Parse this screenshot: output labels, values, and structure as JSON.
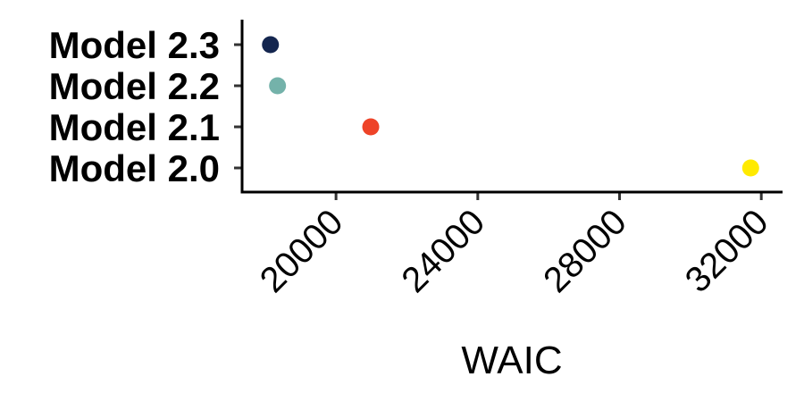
{
  "chart_data": {
    "type": "scatter",
    "title": "",
    "xlabel": "WAIC",
    "ylabel": "",
    "xlim": [
      17350,
      32600
    ],
    "x_ticks": [
      20000,
      24000,
      28000,
      32000
    ],
    "x_tick_labels": [
      "20000",
      "24000",
      "28000",
      "32000"
    ],
    "categories": [
      "Model 2.0",
      "Model 2.1",
      "Model 2.2",
      "Model 2.3"
    ],
    "points": [
      {
        "category": "Model 2.3",
        "x": 18150,
        "color": "#14264f"
      },
      {
        "category": "Model 2.2",
        "x": 18350,
        "color": "#74b2aa"
      },
      {
        "category": "Model 2.1",
        "x": 20980,
        "color": "#ee4328"
      },
      {
        "category": "Model 2.0",
        "x": 31700,
        "color": "#ffea00"
      }
    ],
    "grid": false,
    "legend": "none"
  }
}
